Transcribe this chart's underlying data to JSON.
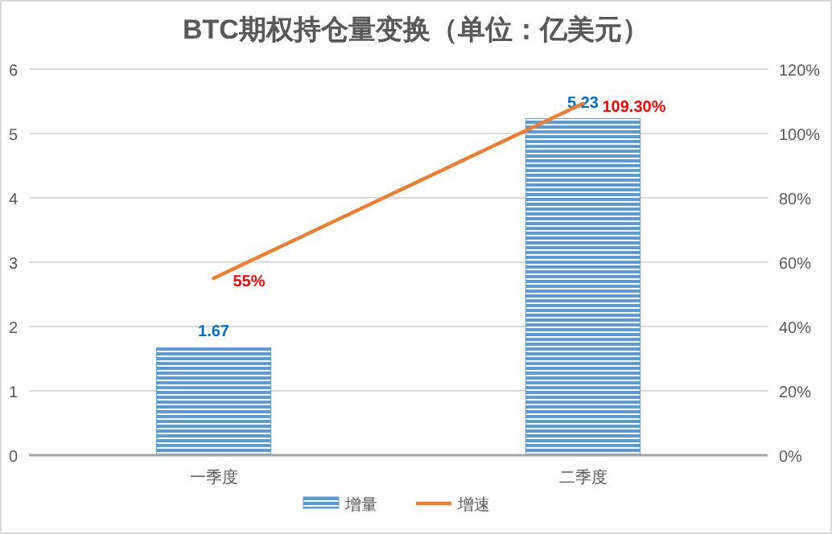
{
  "chart_data": {
    "type": "bar",
    "title": "BTC期权持仓量变换（单位：亿美元）",
    "categories": [
      "一季度",
      "二季度"
    ],
    "series": [
      {
        "name": "增量",
        "color": "#5b9bd5",
        "values": [
          1.67,
          5.23
        ],
        "value_labels": [
          "1.67",
          "5.23"
        ]
      },
      {
        "name": "增速",
        "type": "line",
        "axis": "y2",
        "color": "#ed7d31",
        "values": [
          55,
          109.3
        ],
        "value_labels": [
          "55%",
          "109.30%"
        ]
      }
    ],
    "ylim": [
      0,
      6
    ],
    "yticks": [
      0,
      1,
      2,
      3,
      4,
      5,
      6
    ],
    "y2lim": [
      0,
      120
    ],
    "y2ticks": [
      {
        "value": 0,
        "label": "0%"
      },
      {
        "value": 20,
        "label": "20%"
      },
      {
        "value": 40,
        "label": "40%"
      },
      {
        "value": 60,
        "label": "60%"
      },
      {
        "value": 80,
        "label": "80%"
      },
      {
        "value": 100,
        "label": "100%"
      },
      {
        "value": 120,
        "label": "120%"
      }
    ],
    "grid": "y",
    "legend": "bottom",
    "marker": "none",
    "line_style": "solid"
  }
}
